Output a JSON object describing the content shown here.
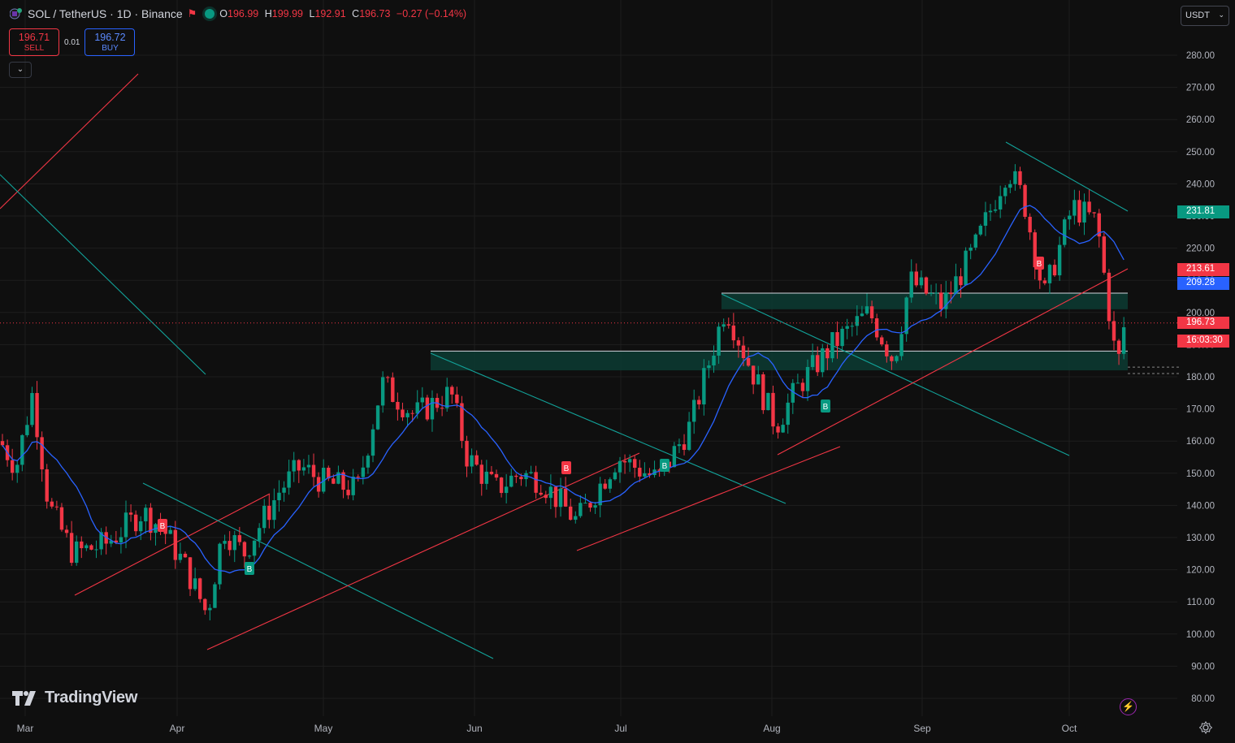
{
  "header": {
    "symbol": "SOL / TetherUS · 1D · Binance",
    "ohlc": [
      {
        "key": "O",
        "value": "196.99"
      },
      {
        "key": "H",
        "value": "199.99"
      },
      {
        "key": "L",
        "value": "192.91"
      },
      {
        "key": "C",
        "value": "196.73"
      }
    ],
    "change": "−0.27 (−0.14%)"
  },
  "trade": {
    "sell_price": "196.71",
    "sell_label": "SELL",
    "spread": "0.01",
    "buy_price": "196.72",
    "buy_label": "BUY"
  },
  "currency": "USDT",
  "logo_text": "TradingView",
  "colors": {
    "background": "#0f0f0f",
    "up": "#089981",
    "down": "#f23645",
    "ma": "#2962ff",
    "trendline_red": "#f23645",
    "trendline_teal": "#12a39a",
    "zone_fill": "#0c3b33",
    "axis_text": "#b2b5be"
  },
  "price_axis": {
    "ticks": [
      "280.00",
      "270.00",
      "260.00",
      "250.00",
      "240.00",
      "230.00",
      "220.00",
      "210.00",
      "200.00",
      "190.00",
      "180.00",
      "170.00",
      "160.00",
      "150.00",
      "140.00",
      "130.00",
      "120.00",
      "110.00",
      "100.00",
      "90.00",
      "80.00"
    ],
    "badges": [
      {
        "label": "231.81",
        "color": "#089981"
      },
      {
        "label": "213.61",
        "color": "#f23645"
      },
      {
        "label": "209.28",
        "color": "#2962ff"
      },
      {
        "label": "196.73",
        "color": "#f23645"
      },
      {
        "label": "16:03:30",
        "color": "#f23645"
      }
    ]
  },
  "time_axis": {
    "labels": [
      "Mar",
      "Apr",
      "May",
      "Jun",
      "Jul",
      "Aug",
      "Sep",
      "Oct"
    ]
  },
  "signals": [
    {
      "label": "B",
      "color": "#f23645"
    },
    {
      "label": "B",
      "color": "#089981"
    },
    {
      "label": "B",
      "color": "#f23645"
    },
    {
      "label": "B",
      "color": "#089981"
    },
    {
      "label": "B",
      "color": "#089981"
    },
    {
      "label": "B",
      "color": "#f23645"
    }
  ],
  "chart_data": {
    "type": "candlestick",
    "series_close_points": [
      {
        "x": "Mar",
        "y": 152
      },
      {
        "x": "Mar",
        "y": 175
      },
      {
        "x": "Mar",
        "y": 140
      },
      {
        "x": "Mar",
        "y": 125
      },
      {
        "x": "Mar",
        "y": 128
      },
      {
        "x": "Apr",
        "y": 138
      },
      {
        "x": "Apr",
        "y": 133
      },
      {
        "x": "Apr",
        "y": 120
      },
      {
        "x": "Apr",
        "y": 106
      },
      {
        "x": "Apr",
        "y": 133
      },
      {
        "x": "May",
        "y": 145
      },
      {
        "x": "May",
        "y": 152
      },
      {
        "x": "May",
        "y": 147
      },
      {
        "x": "May",
        "y": 145
      },
      {
        "x": "May",
        "y": 178
      },
      {
        "x": "Jun",
        "y": 168
      },
      {
        "x": "Jun",
        "y": 175
      },
      {
        "x": "Jun",
        "y": 155
      },
      {
        "x": "Jun",
        "y": 145
      },
      {
        "x": "Jun",
        "y": 150
      },
      {
        "x": "Jul",
        "y": 135
      },
      {
        "x": "Jul",
        "y": 155
      },
      {
        "x": "Jul",
        "y": 148
      },
      {
        "x": "Jul",
        "y": 165
      },
      {
        "x": "Jul",
        "y": 202
      },
      {
        "x": "Aug",
        "y": 185
      },
      {
        "x": "Aug",
        "y": 165
      },
      {
        "x": "Aug",
        "y": 178
      },
      {
        "x": "Aug",
        "y": 190
      },
      {
        "x": "Aug",
        "y": 200
      },
      {
        "x": "Sep",
        "y": 202
      },
      {
        "x": "Sep",
        "y": 220
      },
      {
        "x": "Sep",
        "y": 245
      },
      {
        "x": "Sep",
        "y": 235
      },
      {
        "x": "Sep",
        "y": 205
      },
      {
        "x": "Oct",
        "y": 233
      },
      {
        "x": "Oct",
        "y": 228
      },
      {
        "x": "Oct",
        "y": 182
      },
      {
        "x": "Oct",
        "y": 196.73
      }
    ],
    "last_price": 196.73,
    "moving_average_last": 209.28,
    "y_range": [
      80,
      280
    ],
    "grid": true
  }
}
